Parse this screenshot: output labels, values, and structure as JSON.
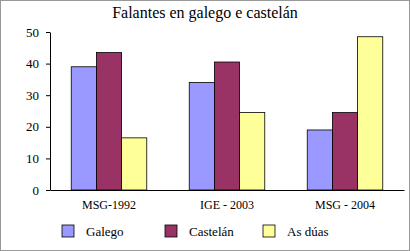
{
  "chart_data": {
    "type": "bar",
    "title": "Falantes en galego e castelán",
    "categories": [
      "MSG-1992",
      "IGE - 2003",
      "MSG - 2004"
    ],
    "series": [
      {
        "name": "Galego",
        "color": "#9999ff",
        "values": [
          39,
          34,
          19
        ]
      },
      {
        "name": "Castelán",
        "color": "#993366",
        "values": [
          43.5,
          40.5,
          24.5
        ]
      },
      {
        "name": "As dúas",
        "color": "#ffff99",
        "values": [
          16.5,
          24.5,
          48.5
        ]
      }
    ],
    "ylim": [
      0,
      50
    ],
    "yticks": [
      0,
      10,
      20,
      30,
      40,
      50
    ],
    "grid": false,
    "legend": "bottom"
  }
}
